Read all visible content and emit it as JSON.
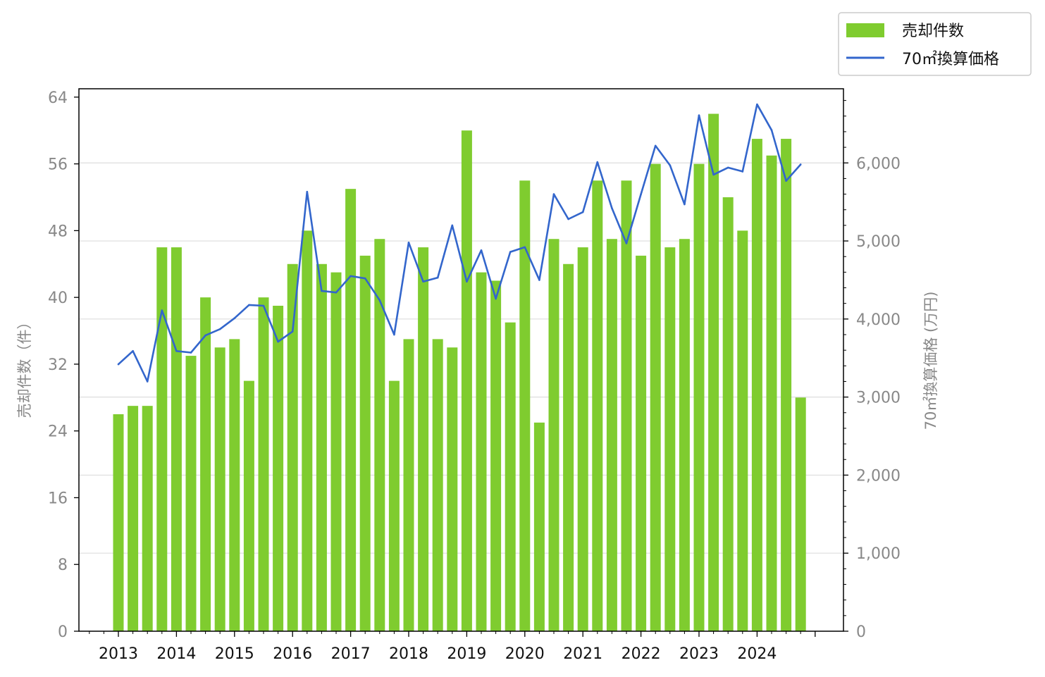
{
  "chart_data": {
    "type": "bar+line",
    "x": [
      "2013Q1",
      "2013Q2",
      "2013Q3",
      "2013Q4",
      "2014Q1",
      "2014Q2",
      "2014Q3",
      "2014Q4",
      "2015Q1",
      "2015Q2",
      "2015Q3",
      "2015Q4",
      "2016Q1",
      "2016Q2",
      "2016Q3",
      "2016Q4",
      "2017Q1",
      "2017Q2",
      "2017Q3",
      "2017Q4",
      "2018Q1",
      "2018Q2",
      "2018Q3",
      "2018Q4",
      "2019Q1",
      "2019Q2",
      "2019Q3",
      "2019Q4",
      "2020Q1",
      "2020Q2",
      "2020Q3",
      "2020Q4",
      "2021Q1",
      "2021Q2",
      "2021Q3",
      "2021Q4",
      "2022Q1",
      "2022Q2",
      "2022Q3",
      "2022Q4",
      "2023Q1",
      "2023Q2",
      "2023Q3",
      "2023Q4",
      "2024Q1",
      "2024Q2",
      "2024Q3",
      "2024Q4"
    ],
    "x_tick_labels": [
      "2013",
      "2014",
      "2015",
      "2016",
      "2017",
      "2018",
      "2019",
      "2020",
      "2021",
      "2022",
      "2023",
      "2024"
    ],
    "series": [
      {
        "name": "売却件数",
        "type": "bar",
        "axis": "left",
        "color": "#7fcc2f",
        "values": [
          26,
          27,
          27,
          46,
          46,
          33,
          40,
          34,
          35,
          30,
          40,
          39,
          44,
          48,
          44,
          43,
          53,
          45,
          47,
          30,
          35,
          46,
          35,
          34,
          60,
          43,
          42,
          37,
          54,
          25,
          47,
          44,
          46,
          54,
          47,
          54,
          45,
          56,
          46,
          47,
          56,
          62,
          52,
          48,
          59,
          57,
          59,
          28
        ]
      },
      {
        "name": "70㎡換算価格",
        "type": "line",
        "axis": "right",
        "color": "#3366cc",
        "values": [
          3420,
          3590,
          3200,
          4110,
          3590,
          3570,
          3790,
          3870,
          4010,
          4180,
          4170,
          3710,
          3840,
          5630,
          4360,
          4340,
          4550,
          4520,
          4240,
          3800,
          4980,
          4480,
          4530,
          5200,
          4480,
          4880,
          4260,
          4860,
          4920,
          4500,
          5600,
          5280,
          5370,
          6010,
          5420,
          4970,
          5600,
          6220,
          5970,
          5470,
          6610,
          5850,
          5940,
          5890,
          6750,
          6420,
          5770,
          5980
        ]
      }
    ],
    "y_left": {
      "label": "売却件数（件）",
      "lim": [
        0,
        65
      ],
      "ticks": [
        0,
        8,
        16,
        24,
        32,
        40,
        48,
        56,
        64
      ]
    },
    "y_right": {
      "label": "70㎡換算価格 (万円)",
      "lim": [
        0,
        6950
      ],
      "ticks": [
        0,
        1000,
        2000,
        3000,
        4000,
        5000,
        6000
      ],
      "tick_labels": [
        "0",
        "1,000",
        "2,000",
        "3,000",
        "4,000",
        "5,000",
        "6,000"
      ]
    },
    "grid": "horizontal-right-axis",
    "legend": "top-right-outside"
  }
}
